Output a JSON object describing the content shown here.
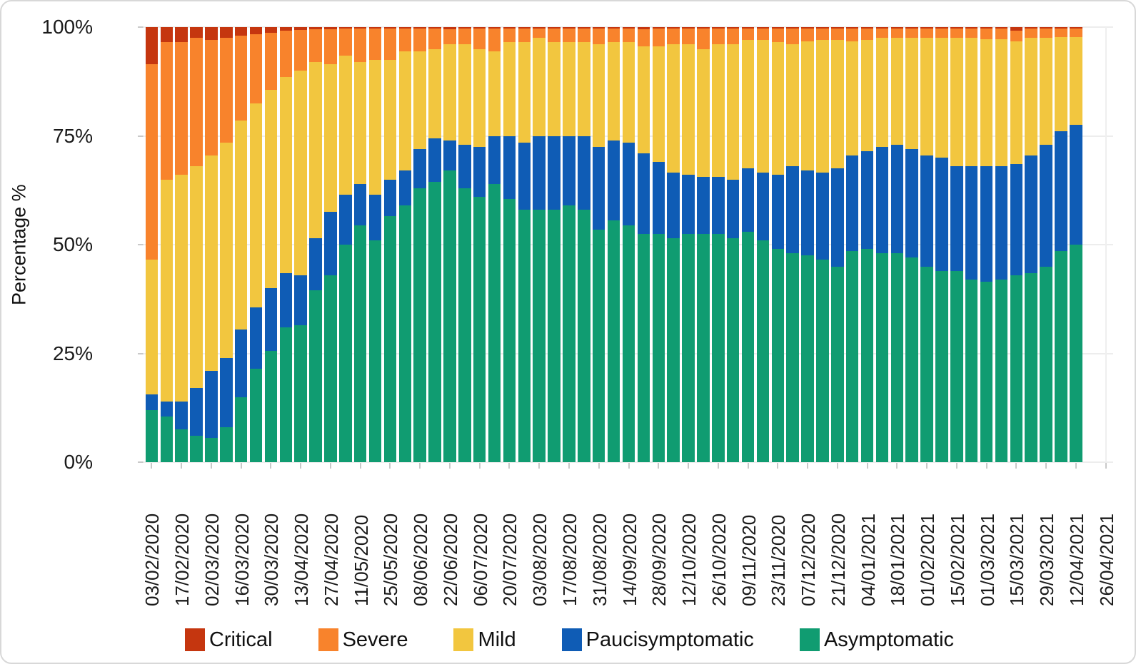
{
  "figure": {
    "background": "#ffffff",
    "border_color": "#d8d8d8"
  },
  "chart_data": {
    "type": "bar",
    "stacked": true,
    "stack_unit": "percent",
    "title": "",
    "xlabel": "",
    "ylabel": "Percentage %",
    "ylim": [
      0,
      100
    ],
    "grid": true,
    "legend_position": "bottom",
    "y_ticks": [
      {
        "label": "0%",
        "value": 0
      },
      {
        "label": "25%",
        "value": 25
      },
      {
        "label": "50%",
        "value": 50
      },
      {
        "label": "75%",
        "value": 75
      },
      {
        "label": "100%",
        "value": 100
      }
    ],
    "x_tick_labels": [
      "03/02/2020",
      "17/02/2020",
      "02/03/2020",
      "16/03/2020",
      "30/03/2020",
      "13/04/2020",
      "27/04/2020",
      "11/05/2020",
      "25/05/2020",
      "08/06/2020",
      "22/06/2020",
      "06/07/2020",
      "20/07/2020",
      "03/08/2020",
      "17/08/2020",
      "31/08/2020",
      "14/09/2020",
      "28/09/2020",
      "12/10/2020",
      "26/10/2020",
      "09/11/2020",
      "23/11/2020",
      "07/12/2020",
      "21/12/2020",
      "04/01/2021",
      "18/01/2021",
      "01/02/2021",
      "15/02/2021",
      "01/03/2021",
      "15/03/2021",
      "29/03/2021",
      "12/04/2021",
      "26/04/2021"
    ],
    "categories": [
      "03/02/2020",
      "10/02/2020",
      "17/02/2020",
      "24/02/2020",
      "02/03/2020",
      "09/03/2020",
      "16/03/2020",
      "23/03/2020",
      "30/03/2020",
      "06/04/2020",
      "13/04/2020",
      "20/04/2020",
      "27/04/2020",
      "04/05/2020",
      "11/05/2020",
      "18/05/2020",
      "25/05/2020",
      "01/06/2020",
      "08/06/2020",
      "15/06/2020",
      "22/06/2020",
      "29/06/2020",
      "06/07/2020",
      "13/07/2020",
      "20/07/2020",
      "27/07/2020",
      "03/08/2020",
      "10/08/2020",
      "17/08/2020",
      "24/08/2020",
      "31/08/2020",
      "07/09/2020",
      "14/09/2020",
      "21/09/2020",
      "28/09/2020",
      "05/10/2020",
      "12/10/2020",
      "19/10/2020",
      "26/10/2020",
      "02/11/2020",
      "09/11/2020",
      "16/11/2020",
      "23/11/2020",
      "30/11/2020",
      "07/12/2020",
      "14/12/2020",
      "21/12/2020",
      "28/12/2020",
      "04/01/2021",
      "11/01/2021",
      "18/01/2021",
      "25/01/2021",
      "01/02/2021",
      "08/02/2021",
      "15/02/2021",
      "22/02/2021",
      "01/03/2021",
      "08/03/2021",
      "15/03/2021",
      "22/03/2021",
      "29/03/2021",
      "05/04/2021",
      "12/04/2021"
    ],
    "series": [
      {
        "name": "Asymptomatic",
        "color": "#109C71",
        "values": [
          12,
          10.5,
          7.5,
          6,
          5.5,
          8,
          15,
          21.5,
          25.5,
          31,
          31.5,
          39.5,
          43,
          50,
          54.5,
          51,
          56.5,
          59,
          63,
          64.5,
          67,
          63,
          61,
          64,
          60.5,
          58,
          58,
          58,
          59,
          58,
          53.5,
          55.5,
          54.5,
          52.5,
          52.5,
          51.5,
          52.5,
          52.5,
          52.5,
          51.5,
          53,
          51,
          49,
          48,
          47.5,
          46.5,
          45,
          48.5,
          49,
          48,
          48,
          47,
          45,
          44,
          44,
          42,
          41.5,
          42,
          43,
          43.5,
          45,
          48.5,
          50
        ]
      },
      {
        "name": "Paucisymptomatic",
        "color": "#0F5CB5",
        "values": [
          3.5,
          3.5,
          6.5,
          11,
          15.5,
          16,
          15.5,
          14,
          14.5,
          12.5,
          11.5,
          12,
          14.5,
          11.5,
          9.5,
          10.5,
          8.5,
          8,
          9,
          10,
          7,
          10,
          11.5,
          11,
          14.5,
          15.5,
          17,
          17,
          16,
          17,
          19,
          18.5,
          19,
          18.5,
          16.5,
          15,
          13.5,
          13,
          13,
          13.5,
          14.5,
          15.5,
          17,
          20,
          19.5,
          20,
          22.5,
          22,
          22.5,
          24.5,
          25,
          25,
          25.5,
          26,
          24,
          26,
          26.5,
          26,
          25.5,
          27,
          28,
          27.5,
          27.5
        ]
      },
      {
        "name": "Mild",
        "color": "#F2C63F",
        "values": [
          31,
          51,
          52,
          51,
          49.5,
          49.5,
          48,
          47,
          45.5,
          45,
          47,
          40.5,
          34,
          32,
          28,
          31,
          27.5,
          27.5,
          22.5,
          20.5,
          22,
          23,
          22.5,
          19.5,
          21.5,
          23,
          22.5,
          21.5,
          21.5,
          21.5,
          23.5,
          22.5,
          23,
          24.5,
          26.5,
          29.5,
          30,
          29.5,
          30.5,
          31,
          29.5,
          30.5,
          30.5,
          28,
          29.7,
          30.5,
          29.5,
          26.2,
          25.5,
          25,
          24.5,
          25.5,
          27,
          27.5,
          29.5,
          29.5,
          29.2,
          29.2,
          28.2,
          27,
          24.5,
          21.7,
          20.2
        ]
      },
      {
        "name": "Severe",
        "color": "#F8832C",
        "values": [
          45,
          31.5,
          30.5,
          29.5,
          26.5,
          24,
          19.5,
          15.9,
          13.2,
          10.7,
          9.4,
          7.5,
          8,
          6.1,
          7.6,
          7.1,
          7.1,
          5.1,
          5.1,
          4.6,
          3.5,
          3.6,
          4.6,
          5.1,
          3.1,
          3.1,
          2.2,
          3.2,
          3.2,
          3.2,
          3.7,
          3.2,
          3.2,
          4,
          4.2,
          3.7,
          3.6,
          4.7,
          3.7,
          3.7,
          2.6,
          2.6,
          3.2,
          3.7,
          3,
          2.6,
          2.7,
          3,
          2.7,
          2.2,
          2.2,
          2.2,
          2.2,
          2.2,
          2.2,
          2.2,
          2.4,
          2.5,
          2.5,
          2.2,
          2.2,
          2,
          2
        ]
      },
      {
        "name": "Critical",
        "color": "#C5360F",
        "values": [
          8.5,
          3.5,
          3.5,
          2.5,
          3,
          2.5,
          2,
          1.6,
          1.3,
          0.8,
          0.6,
          0.5,
          0.5,
          0.4,
          0.4,
          0.4,
          0.4,
          0.4,
          0.4,
          0.4,
          0.5,
          0.4,
          0.4,
          0.4,
          0.4,
          0.4,
          0.3,
          0.3,
          0.3,
          0.3,
          0.3,
          0.3,
          0.3,
          0.5,
          0.3,
          0.3,
          0.4,
          0.3,
          0.3,
          0.3,
          0.4,
          0.4,
          0.3,
          0.3,
          0.3,
          0.4,
          0.3,
          0.3,
          0.3,
          0.3,
          0.3,
          0.3,
          0.3,
          0.3,
          0.3,
          0.3,
          0.4,
          0.3,
          0.8,
          0.3,
          0.3,
          0.3,
          0.3
        ]
      }
    ],
    "legend_entries": [
      "Critical",
      "Severe",
      "Mild",
      "Paucisymptomatic",
      "Asymptomatic"
    ]
  }
}
